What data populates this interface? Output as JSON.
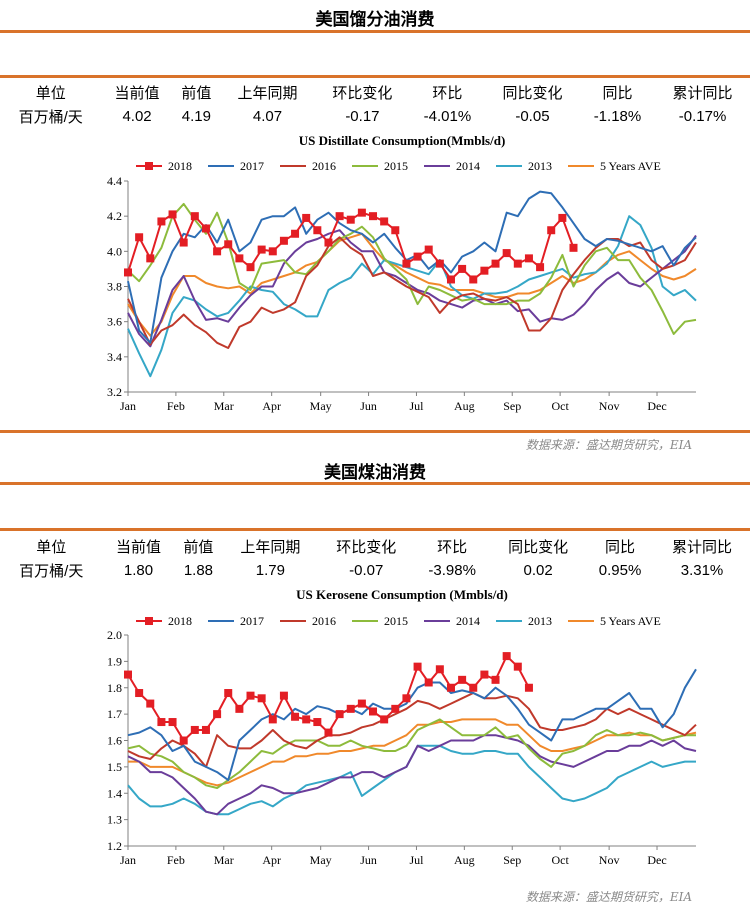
{
  "sections": [
    {
      "title": "美国馏分油消费",
      "stats_headers": [
        "单位",
        "当前值",
        "前值",
        "上年同期",
        "环比变化",
        "环比",
        "同比变化",
        "同比",
        "累计同比"
      ],
      "stats_values": [
        "百万桶/天",
        "4.02",
        "4.19",
        "4.07",
        "-0.17",
        "-4.01%",
        "-0.05",
        "-1.18%",
        "-0.17%"
      ],
      "source": "数据来源：盛达期货研究，EIA"
    },
    {
      "title": "美国煤油消费",
      "stats_headers": [
        "单位",
        "当前值",
        "前值",
        "上年同期",
        "环比变化",
        "环比",
        "同比变化",
        "同比",
        "累计同比"
      ],
      "stats_values": [
        "百万桶/天",
        "1.80",
        "1.88",
        "1.79",
        "-0.07",
        "-3.98%",
        "0.02",
        "0.95%",
        "3.31%"
      ],
      "source": "数据来源：盛达期货研究，EIA"
    }
  ],
  "chart_data": [
    {
      "type": "line",
      "title": "US Distillate Consumption(Mmbls/d)",
      "xlabel": "",
      "ylabel": "",
      "ylim": [
        3.2,
        4.4
      ],
      "yticks": [
        3.2,
        3.4,
        3.6,
        3.8,
        4.0,
        4.2,
        4.4
      ],
      "ytick_labels": [
        "3.2",
        "3.4",
        "3.6",
        "3.8",
        "4.0",
        "4.2",
        "4.4"
      ],
      "x_range": [
        1,
        52
      ],
      "month_labels": [
        "Jan",
        "Feb",
        "Mar",
        "Apr",
        "May",
        "Jun",
        "Jul",
        "Aug",
        "Sep",
        "Oct",
        "Nov",
        "Dec"
      ],
      "month_positions": [
        1,
        5.3,
        9.6,
        13.9,
        18.3,
        22.6,
        26.9,
        31.2,
        35.5,
        39.8,
        44.2,
        48.5
      ],
      "legend_position": "top",
      "series": [
        {
          "name": "2018",
          "color": "#e31e24",
          "marker": "square",
          "values": [
            3.88,
            4.08,
            3.96,
            4.17,
            4.21,
            4.05,
            4.2,
            4.13,
            4.0,
            4.04,
            3.96,
            3.91,
            4.01,
            4.0,
            4.06,
            4.1,
            4.19,
            4.12,
            4.05,
            4.2,
            4.18,
            4.22,
            4.2,
            4.17,
            4.12,
            3.93,
            3.97,
            4.01,
            3.93,
            3.84,
            3.9,
            3.84,
            3.89,
            3.93,
            3.99,
            3.93,
            3.96,
            3.91,
            4.12,
            4.19,
            4.02
          ]
        },
        {
          "name": "2017",
          "color": "#2e6eb5",
          "marker": "none",
          "values": [
            3.83,
            3.55,
            3.48,
            3.85,
            4.0,
            4.1,
            4.08,
            4.15,
            4.05,
            4.18,
            4.0,
            4.05,
            4.18,
            4.2,
            4.2,
            4.25,
            4.1,
            4.18,
            4.22,
            4.16,
            4.12,
            4.1,
            4.05,
            4.1,
            4.02,
            3.95,
            3.98,
            3.9,
            3.95,
            3.88,
            3.97,
            4.0,
            4.05,
            4.0,
            4.22,
            4.2,
            4.3,
            4.34,
            4.33,
            4.25,
            4.16,
            4.07,
            4.03,
            4.07,
            4.06,
            4.04,
            4.02,
            4.0,
            4.03,
            3.92,
            4.02,
            4.08
          ]
        },
        {
          "name": "2016",
          "color": "#c0392b",
          "marker": "none",
          "values": [
            3.73,
            3.6,
            3.47,
            3.55,
            3.58,
            3.64,
            3.58,
            3.54,
            3.48,
            3.45,
            3.57,
            3.6,
            3.68,
            3.65,
            3.67,
            3.71,
            3.86,
            3.92,
            4.03,
            4.08,
            4.02,
            3.98,
            3.86,
            3.88,
            3.84,
            3.8,
            3.77,
            3.74,
            3.65,
            3.72,
            3.75,
            3.76,
            3.73,
            3.72,
            3.74,
            3.7,
            3.55,
            3.55,
            3.62,
            3.78,
            3.87,
            3.95,
            4.02,
            4.07,
            4.07,
            4.03,
            4.05,
            3.95,
            3.9,
            3.92,
            3.95,
            4.05
          ]
        },
        {
          "name": "2015",
          "color": "#8dbb3c",
          "marker": "none",
          "values": [
            3.89,
            3.83,
            3.92,
            4.02,
            4.2,
            4.27,
            4.18,
            4.1,
            4.22,
            4.05,
            3.82,
            3.78,
            3.93,
            3.94,
            3.95,
            3.88,
            3.87,
            3.94,
            4.0,
            4.07,
            4.1,
            4.14,
            4.08,
            3.96,
            3.9,
            3.84,
            3.7,
            3.8,
            3.78,
            3.75,
            3.72,
            3.73,
            3.7,
            3.7,
            3.7,
            3.72,
            3.72,
            3.76,
            3.85,
            3.98,
            3.8,
            3.92,
            4.0,
            4.02,
            3.95,
            3.95,
            3.85,
            3.78,
            3.66,
            3.53,
            3.6,
            3.61
          ]
        },
        {
          "name": "2014",
          "color": "#6a3d9a",
          "marker": "none",
          "values": [
            3.65,
            3.53,
            3.46,
            3.61,
            3.78,
            3.86,
            3.72,
            3.61,
            3.62,
            3.6,
            3.68,
            3.75,
            3.8,
            3.8,
            3.93,
            4.0,
            4.05,
            4.07,
            4.1,
            4.12,
            4.05,
            4.0,
            4.0,
            3.88,
            3.86,
            3.82,
            3.78,
            3.76,
            3.72,
            3.7,
            3.68,
            3.72,
            3.73,
            3.7,
            3.72,
            3.66,
            3.67,
            3.6,
            3.62,
            3.61,
            3.64,
            3.7,
            3.78,
            3.84,
            3.88,
            3.82,
            3.8,
            3.85,
            3.9,
            3.95,
            4.0,
            4.09
          ]
        },
        {
          "name": "2013",
          "color": "#35a7c7",
          "marker": "none",
          "values": [
            3.56,
            3.42,
            3.29,
            3.44,
            3.65,
            3.74,
            3.72,
            3.67,
            3.63,
            3.65,
            3.72,
            3.8,
            3.78,
            3.77,
            3.7,
            3.67,
            3.63,
            3.63,
            3.78,
            3.82,
            3.85,
            3.93,
            3.87,
            3.95,
            3.93,
            3.91,
            3.89,
            3.87,
            3.95,
            3.8,
            3.75,
            3.73,
            3.76,
            3.76,
            3.77,
            3.8,
            3.84,
            3.86,
            3.88,
            3.9,
            3.85,
            3.87,
            3.88,
            3.93,
            4.03,
            4.2,
            4.15,
            4.02,
            3.8,
            3.75,
            3.78,
            3.72
          ]
        },
        {
          "name": "5 Years AVE",
          "color": "#f0892b",
          "marker": "none",
          "values": [
            3.7,
            3.6,
            3.52,
            3.6,
            3.75,
            3.86,
            3.86,
            3.82,
            3.8,
            3.79,
            3.8,
            3.76,
            3.82,
            3.84,
            3.86,
            3.88,
            3.92,
            3.94,
            4.0,
            4.06,
            4.08,
            4.1,
            4.02,
            3.95,
            3.92,
            3.88,
            3.85,
            3.82,
            3.81,
            3.78,
            3.78,
            3.78,
            3.76,
            3.74,
            3.74,
            3.76,
            3.76,
            3.78,
            3.82,
            3.86,
            3.82,
            3.84,
            3.88,
            3.94,
            3.98,
            4.0,
            3.95,
            3.9,
            3.86,
            3.84,
            3.86,
            3.9
          ]
        }
      ]
    },
    {
      "type": "line",
      "title": "US Kerosene Consumption (Mmbls/d)",
      "xlabel": "",
      "ylabel": "",
      "ylim": [
        1.2,
        2.0
      ],
      "yticks": [
        1.2,
        1.3,
        1.4,
        1.5,
        1.6,
        1.7,
        1.8,
        1.9,
        2.0
      ],
      "ytick_labels": [
        "1.2",
        "1.3",
        "1.4",
        "1.5",
        "1.6",
        "1.7",
        "1.8",
        "1.9",
        "2.0"
      ],
      "x_range": [
        1,
        52
      ],
      "month_labels": [
        "Jan",
        "Feb",
        "Mar",
        "Apr",
        "May",
        "Jun",
        "Jul",
        "Aug",
        "Sep",
        "Oct",
        "Nov",
        "Dec"
      ],
      "month_positions": [
        1,
        5.3,
        9.6,
        13.9,
        18.3,
        22.6,
        26.9,
        31.2,
        35.5,
        39.8,
        44.2,
        48.5
      ],
      "legend_position": "top",
      "series": [
        {
          "name": "2018",
          "color": "#e31e24",
          "marker": "square",
          "values": [
            1.85,
            1.78,
            1.74,
            1.67,
            1.67,
            1.6,
            1.64,
            1.64,
            1.7,
            1.78,
            1.72,
            1.77,
            1.76,
            1.68,
            1.77,
            1.69,
            1.68,
            1.67,
            1.63,
            1.7,
            1.72,
            1.74,
            1.71,
            1.68,
            1.72,
            1.76,
            1.88,
            1.82,
            1.87,
            1.8,
            1.83,
            1.8,
            1.85,
            1.83,
            1.92,
            1.88,
            1.8
          ]
        },
        {
          "name": "2017",
          "color": "#2e6eb5",
          "marker": "none",
          "values": [
            1.62,
            1.63,
            1.65,
            1.62,
            1.56,
            1.58,
            1.52,
            1.5,
            1.48,
            1.45,
            1.6,
            1.64,
            1.68,
            1.7,
            1.68,
            1.72,
            1.7,
            1.73,
            1.72,
            1.7,
            1.72,
            1.7,
            1.74,
            1.72,
            1.72,
            1.74,
            1.8,
            1.82,
            1.82,
            1.78,
            1.79,
            1.78,
            1.76,
            1.8,
            1.77,
            1.72,
            1.66,
            1.63,
            1.6,
            1.68,
            1.68,
            1.7,
            1.72,
            1.72,
            1.75,
            1.78,
            1.72,
            1.72,
            1.65,
            1.7,
            1.8,
            1.87
          ]
        },
        {
          "name": "2016",
          "color": "#c0392b",
          "marker": "none",
          "values": [
            1.56,
            1.54,
            1.53,
            1.57,
            1.6,
            1.58,
            1.55,
            1.5,
            1.62,
            1.58,
            1.57,
            1.57,
            1.6,
            1.64,
            1.6,
            1.58,
            1.57,
            1.6,
            1.62,
            1.62,
            1.63,
            1.65,
            1.66,
            1.68,
            1.7,
            1.72,
            1.75,
            1.74,
            1.72,
            1.74,
            1.76,
            1.78,
            1.76,
            1.76,
            1.77,
            1.76,
            1.72,
            1.65,
            1.64,
            1.64,
            1.65,
            1.66,
            1.68,
            1.72,
            1.7,
            1.72,
            1.7,
            1.68,
            1.66,
            1.64,
            1.62,
            1.66
          ]
        },
        {
          "name": "2015",
          "color": "#8dbb3c",
          "marker": "none",
          "values": [
            1.57,
            1.58,
            1.55,
            1.54,
            1.52,
            1.48,
            1.46,
            1.43,
            1.42,
            1.45,
            1.48,
            1.52,
            1.56,
            1.55,
            1.58,
            1.6,
            1.6,
            1.6,
            1.58,
            1.58,
            1.6,
            1.58,
            1.57,
            1.56,
            1.56,
            1.58,
            1.64,
            1.66,
            1.68,
            1.65,
            1.62,
            1.62,
            1.62,
            1.65,
            1.61,
            1.62,
            1.57,
            1.53,
            1.5,
            1.55,
            1.56,
            1.58,
            1.62,
            1.64,
            1.62,
            1.62,
            1.63,
            1.62,
            1.6,
            1.61,
            1.62,
            1.62
          ]
        },
        {
          "name": "2014",
          "color": "#6a3d9a",
          "marker": "none",
          "values": [
            1.54,
            1.52,
            1.48,
            1.48,
            1.46,
            1.42,
            1.38,
            1.33,
            1.32,
            1.36,
            1.38,
            1.4,
            1.43,
            1.42,
            1.4,
            1.4,
            1.41,
            1.42,
            1.44,
            1.46,
            1.46,
            1.48,
            1.48,
            1.46,
            1.48,
            1.5,
            1.58,
            1.56,
            1.58,
            1.6,
            1.6,
            1.6,
            1.62,
            1.62,
            1.61,
            1.6,
            1.58,
            1.54,
            1.52,
            1.51,
            1.5,
            1.52,
            1.54,
            1.56,
            1.56,
            1.58,
            1.58,
            1.6,
            1.58,
            1.6,
            1.57,
            1.56
          ]
        },
        {
          "name": "2013",
          "color": "#35a7c7",
          "marker": "none",
          "values": [
            1.43,
            1.38,
            1.35,
            1.35,
            1.36,
            1.38,
            1.36,
            1.33,
            1.32,
            1.32,
            1.34,
            1.36,
            1.37,
            1.35,
            1.38,
            1.4,
            1.43,
            1.44,
            1.45,
            1.46,
            1.48,
            1.39,
            1.42,
            1.45,
            1.48,
            1.5,
            1.58,
            1.58,
            1.58,
            1.56,
            1.55,
            1.55,
            1.56,
            1.56,
            1.55,
            1.55,
            1.5,
            1.46,
            1.42,
            1.38,
            1.37,
            1.38,
            1.4,
            1.42,
            1.46,
            1.48,
            1.5,
            1.52,
            1.5,
            1.51,
            1.52,
            1.52
          ]
        },
        {
          "name": "5 Years AVE",
          "color": "#f0892b",
          "marker": "none",
          "values": [
            1.52,
            1.52,
            1.5,
            1.5,
            1.5,
            1.48,
            1.46,
            1.44,
            1.43,
            1.44,
            1.46,
            1.48,
            1.5,
            1.52,
            1.52,
            1.54,
            1.54,
            1.55,
            1.55,
            1.56,
            1.56,
            1.57,
            1.58,
            1.58,
            1.6,
            1.62,
            1.66,
            1.66,
            1.67,
            1.67,
            1.68,
            1.68,
            1.68,
            1.68,
            1.66,
            1.66,
            1.62,
            1.58,
            1.56,
            1.56,
            1.57,
            1.58,
            1.6,
            1.62,
            1.62,
            1.63,
            1.62,
            1.62,
            1.6,
            1.61,
            1.62,
            1.63
          ]
        }
      ]
    }
  ]
}
